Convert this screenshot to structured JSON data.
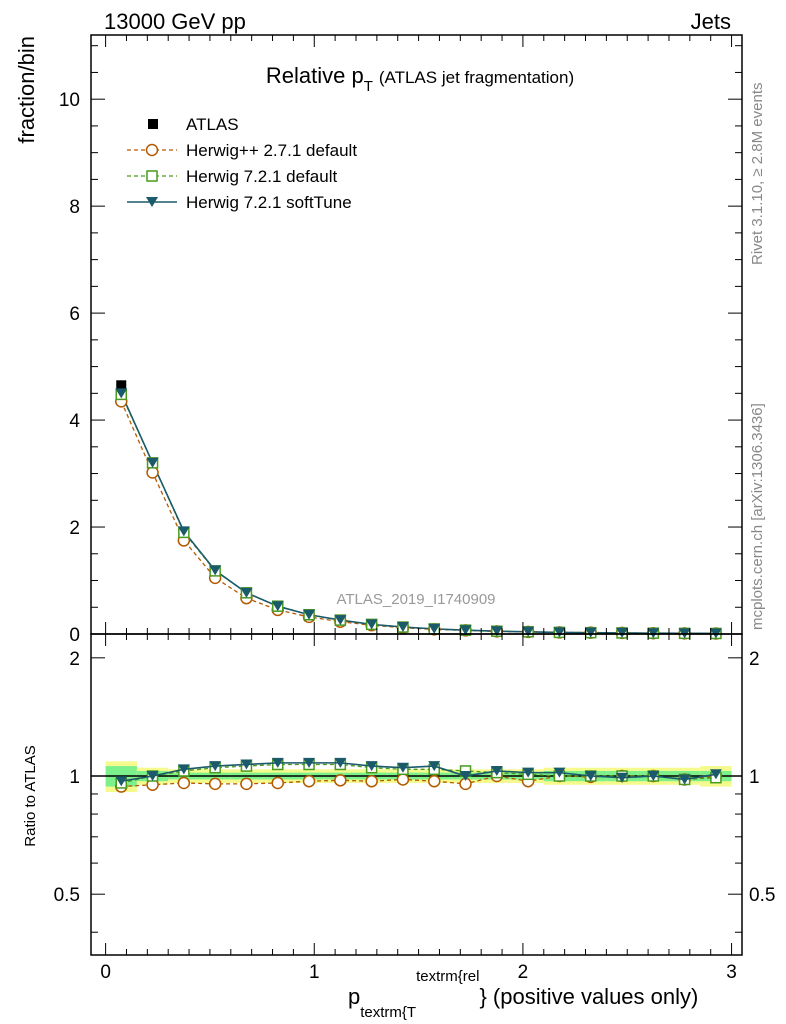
{
  "header": {
    "left": "13000 GeV pp",
    "right": "Jets"
  },
  "side_text": {
    "rivet": "Rivet 3.1.10, ≥ 2.8M events",
    "mcplots": "mcplots.cern.ch [arXiv:1306.3436]"
  },
  "watermark": "ATLAS_2019_I1740909",
  "colors": {
    "atlas": "#000000",
    "herwigpp": "#b35a00",
    "herwig721": "#4a9a1e",
    "softtune": "#1a5a6a",
    "band_inner": "#7cf08a",
    "band_outer": "#f4fa8c"
  },
  "chart_data": {
    "type": "line",
    "title_main": "Relative p",
    "title_sub": "T",
    "title_paren": "(ATLAS jet fragmentation)",
    "xlabel_main": "p",
    "xlabel_sub": "textrm{T",
    "xlabel_sup": "textrm{rel",
    "xlabel_tail": "} (positive values only)",
    "ylabel": "fraction/bin",
    "ratio_ylabel": "Ratio to ATLAS",
    "xlim": [
      -0.07,
      3.05
    ],
    "ylim": [
      0,
      11.2
    ],
    "ratio_ylim": [
      0.35,
      2.3
    ],
    "x_ticks": [
      0,
      1,
      2,
      3
    ],
    "y_ticks": [
      0,
      2,
      4,
      6,
      8,
      10
    ],
    "ratio_ticks": [
      0.5,
      1,
      2
    ],
    "x": [
      0.075,
      0.225,
      0.375,
      0.525,
      0.675,
      0.825,
      0.975,
      1.125,
      1.275,
      1.425,
      1.575,
      1.725,
      1.875,
      2.025,
      2.175,
      2.325,
      2.475,
      2.625,
      2.775,
      2.925
    ],
    "bin_edges": [
      0.0,
      0.15,
      0.3,
      0.45,
      0.6,
      0.75,
      0.9,
      1.05,
      1.2,
      1.35,
      1.5,
      1.65,
      1.8,
      1.95,
      2.1,
      2.25,
      2.4,
      2.55,
      2.7,
      2.85,
      3.0
    ],
    "legend": [
      "ATLAS",
      "Herwig++ 2.7.1 default",
      "Herwig 7.2.1 default",
      "Herwig 7.2.1 softTune"
    ],
    "series": [
      {
        "name": "ATLAS",
        "marker": "square-filled",
        "values": [
          4.65,
          3.18,
          1.85,
          1.12,
          0.72,
          0.48,
          0.33,
          0.24,
          0.17,
          0.12,
          0.09,
          0.07,
          0.05,
          0.04,
          0.03,
          0.025,
          0.02,
          0.015,
          0.012,
          0.01
        ]
      },
      {
        "name": "Herwig++ 2.7.1 default",
        "marker": "circle-open",
        "values": [
          4.35,
          3.02,
          1.75,
          1.05,
          0.67,
          0.45,
          0.32,
          0.23,
          0.165,
          0.117,
          0.087,
          0.067,
          0.05,
          0.039,
          0.03,
          0.025,
          0.02,
          0.015,
          0.012,
          0.01
        ]
      },
      {
        "name": "Herwig 7.2.1 default",
        "marker": "square-open",
        "values": [
          4.48,
          3.2,
          1.9,
          1.18,
          0.77,
          0.52,
          0.36,
          0.26,
          0.18,
          0.13,
          0.095,
          0.072,
          0.052,
          0.041,
          0.03,
          0.025,
          0.02,
          0.015,
          0.012,
          0.01
        ]
      },
      {
        "name": "Herwig 7.2.1 softTune",
        "marker": "triangle-down-filled",
        "values": [
          4.5,
          3.2,
          1.92,
          1.19,
          0.77,
          0.52,
          0.36,
          0.26,
          0.18,
          0.13,
          0.096,
          0.071,
          0.052,
          0.041,
          0.03,
          0.025,
          0.02,
          0.015,
          0.012,
          0.01
        ]
      }
    ],
    "ratio": {
      "band_inner": [
        0.06,
        0.03,
        0.02,
        0.02,
        0.02,
        0.02,
        0.02,
        0.02,
        0.02,
        0.02,
        0.02,
        0.02,
        0.02,
        0.02,
        0.03,
        0.03,
        0.03,
        0.03,
        0.03,
        0.03
      ],
      "band_outer": [
        0.09,
        0.05,
        0.04,
        0.04,
        0.04,
        0.04,
        0.04,
        0.04,
        0.04,
        0.04,
        0.04,
        0.04,
        0.04,
        0.04,
        0.05,
        0.05,
        0.05,
        0.05,
        0.05,
        0.06
      ],
      "series": [
        {
          "name": "Herwig++ 2.7.1 default",
          "values": [
            0.94,
            0.95,
            0.96,
            0.955,
            0.955,
            0.96,
            0.97,
            0.975,
            0.97,
            0.98,
            0.97,
            0.955,
            1.0,
            0.97,
            1.0,
            0.995,
            1.0,
            1.0,
            0.98,
            1.0
          ]
        },
        {
          "name": "Herwig 7.2.1 default",
          "values": [
            0.96,
            1.0,
            1.03,
            1.05,
            1.06,
            1.07,
            1.07,
            1.07,
            1.05,
            1.04,
            1.04,
            1.03,
            1.02,
            1.01,
            1.0,
            1.0,
            1.0,
            1.0,
            0.98,
            0.99
          ]
        },
        {
          "name": "Herwig 7.2.1 softTune",
          "values": [
            0.97,
            1.0,
            1.04,
            1.06,
            1.07,
            1.08,
            1.08,
            1.08,
            1.06,
            1.05,
            1.06,
            1.0,
            1.03,
            1.02,
            1.02,
            1.0,
            0.99,
            1.0,
            0.98,
            1.01
          ]
        }
      ]
    }
  }
}
